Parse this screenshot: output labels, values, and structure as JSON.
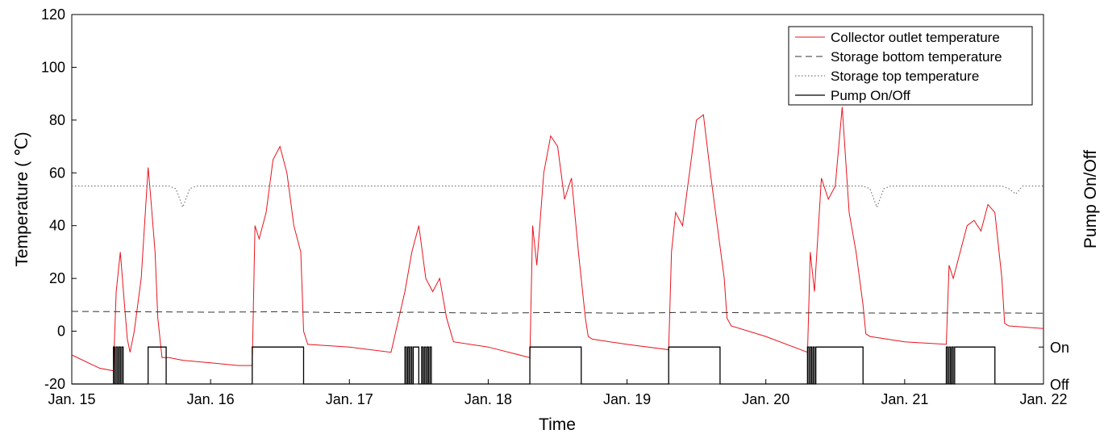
{
  "chart_data": {
    "type": "line",
    "xlabel": "Time",
    "ylabel": "Temperature ( ℃)",
    "y2label": "Pump On/Off",
    "ylim": [
      -20,
      120
    ],
    "yticks": [
      "-20",
      "0",
      "20",
      "40",
      "60",
      "80",
      "100",
      "120"
    ],
    "xticks": [
      "Jan. 15",
      "Jan. 16",
      "Jan. 17",
      "Jan. 18",
      "Jan. 19",
      "Jan. 20",
      "Jan. 21",
      "Jan. 22"
    ],
    "xlim_days": [
      15,
      22
    ],
    "y2ticks": [
      "On",
      "Off"
    ],
    "legend_position": "top-right",
    "grid": false,
    "colors": {
      "collector": "#e8141e",
      "storage": "#333333",
      "pump": "#000000"
    },
    "series": [
      {
        "name": "Collector outlet temperature",
        "style": "solid-red",
        "x": [
          15.0,
          15.2,
          15.3,
          15.32,
          15.35,
          15.38,
          15.4,
          15.42,
          15.45,
          15.5,
          15.55,
          15.57,
          15.6,
          15.62,
          15.65,
          15.7,
          15.8,
          16.0,
          16.2,
          16.3,
          16.32,
          16.35,
          16.4,
          16.45,
          16.5,
          16.55,
          16.6,
          16.65,
          16.67,
          16.7,
          17.0,
          17.3,
          17.4,
          17.45,
          17.5,
          17.55,
          17.6,
          17.65,
          17.7,
          17.75,
          18.0,
          18.3,
          18.32,
          18.35,
          18.4,
          18.45,
          18.5,
          18.55,
          18.6,
          18.65,
          18.7,
          18.72,
          18.75,
          19.0,
          19.3,
          19.32,
          19.35,
          19.4,
          19.45,
          19.5,
          19.55,
          19.6,
          19.65,
          19.7,
          19.72,
          19.75,
          20.0,
          20.3,
          20.32,
          20.35,
          20.4,
          20.45,
          20.5,
          20.55,
          20.6,
          20.65,
          20.7,
          20.72,
          20.75,
          21.0,
          21.3,
          21.32,
          21.35,
          21.4,
          21.45,
          21.5,
          21.55,
          21.6,
          21.65,
          21.7,
          21.72,
          21.75,
          22.0
        ],
        "values": [
          -9,
          -14,
          -15,
          15,
          30,
          10,
          -3,
          -8,
          0,
          20,
          62,
          50,
          30,
          5,
          -10,
          -10,
          -11,
          -12,
          -13,
          -13,
          40,
          35,
          45,
          65,
          70,
          60,
          40,
          30,
          0,
          -5,
          -6,
          -8,
          15,
          30,
          40,
          20,
          15,
          20,
          5,
          -4,
          -6,
          -10,
          40,
          25,
          60,
          74,
          70,
          50,
          58,
          30,
          5,
          -2,
          -3,
          -5,
          -7,
          30,
          45,
          40,
          60,
          80,
          82,
          60,
          40,
          20,
          5,
          2,
          -2,
          -8,
          30,
          15,
          58,
          50,
          55,
          85,
          45,
          30,
          10,
          -1,
          -2,
          -4,
          -5,
          25,
          20,
          30,
          40,
          42,
          38,
          48,
          45,
          20,
          3,
          2,
          1
        ]
      },
      {
        "name": "Storage bottom temperature",
        "style": "dashed-black",
        "x": [
          15.0,
          16.0,
          16.5,
          17.0,
          17.5,
          18.0,
          18.5,
          19.0,
          19.5,
          20.0,
          20.5,
          21.0,
          21.5,
          22.0
        ],
        "values": [
          7.5,
          7.2,
          7.4,
          7.0,
          7.2,
          6.8,
          7.1,
          6.8,
          7.2,
          6.9,
          7.0,
          6.8,
          7.0,
          6.8
        ]
      },
      {
        "name": "Storage top temperature",
        "style": "dotted-gray",
        "x": [
          15.0,
          15.7,
          15.75,
          15.8,
          15.85,
          15.9,
          16.0,
          17.0,
          18.0,
          19.0,
          20.0,
          20.7,
          20.75,
          20.8,
          20.85,
          20.9,
          21.0,
          21.7,
          21.75,
          21.8,
          21.85,
          22.0
        ],
        "values": [
          55,
          55,
          54,
          47,
          54,
          55,
          55,
          55,
          55,
          55,
          55,
          55,
          54,
          47,
          54,
          55,
          55,
          55,
          54,
          52,
          55,
          55
        ]
      },
      {
        "name": "Pump On/Off",
        "style": "solid-black",
        "states": [
          "Off",
          "On"
        ],
        "on_intervals": [
          [
            15.3,
            15.31
          ],
          [
            15.32,
            15.33
          ],
          [
            15.34,
            15.35
          ],
          [
            15.36,
            15.37
          ],
          [
            15.55,
            15.68
          ],
          [
            16.3,
            16.67
          ],
          [
            17.4,
            17.41
          ],
          [
            17.42,
            17.43
          ],
          [
            17.44,
            17.45
          ],
          [
            17.46,
            17.5
          ],
          [
            17.52,
            17.53
          ],
          [
            17.54,
            17.55
          ],
          [
            17.56,
            17.57
          ],
          [
            17.58,
            17.59
          ],
          [
            18.3,
            18.67
          ],
          [
            19.3,
            19.67
          ],
          [
            20.3,
            20.31
          ],
          [
            20.32,
            20.33
          ],
          [
            20.34,
            20.35
          ],
          [
            20.36,
            20.7
          ],
          [
            21.3,
            21.31
          ],
          [
            21.32,
            21.33
          ],
          [
            21.34,
            21.35
          ],
          [
            21.36,
            21.65
          ]
        ]
      }
    ]
  }
}
